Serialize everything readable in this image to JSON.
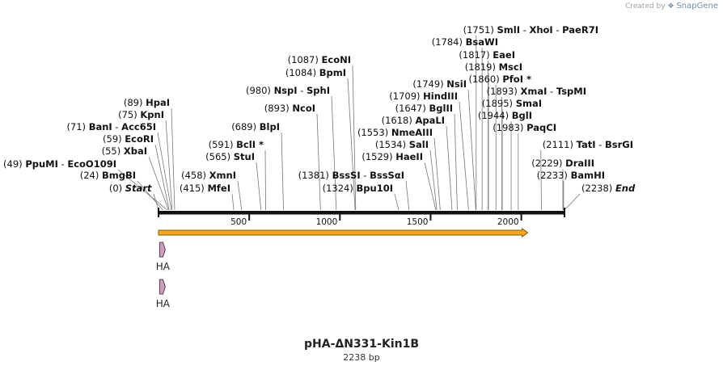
{
  "credit": {
    "prefix": "Created by",
    "brand": "SnapGene"
  },
  "plasmid": {
    "name": "pHA-ΔN331-Kin1B",
    "length_label": "2238 bp",
    "length": 2238
  },
  "ruler": {
    "ticks": [
      500,
      1000,
      1500,
      2000
    ]
  },
  "feature_arrow": {
    "start": 0,
    "end": 2000,
    "fill": "#f5a623",
    "stroke": "#8a5a00"
  },
  "tags": [
    {
      "label": "HA",
      "position": 24
    },
    {
      "label": "HA",
      "position": 24
    }
  ],
  "sites": [
    {
      "names": [
        "Start"
      ],
      "pos_label": "(0)",
      "pos": 0,
      "special": true
    },
    {
      "names": [
        "BmgBI"
      ],
      "pos_label": "(24)",
      "pos": 24
    },
    {
      "names": [
        "PpuMI",
        "EcoO109I"
      ],
      "pos_label": "(49)",
      "pos": 49
    },
    {
      "names": [
        "XbaI"
      ],
      "pos_label": "(55)",
      "pos": 55
    },
    {
      "names": [
        "EcoRI"
      ],
      "pos_label": "(59)",
      "pos": 59
    },
    {
      "names": [
        "BanI",
        "Acc65I"
      ],
      "pos_label": "(71)",
      "pos": 71
    },
    {
      "names": [
        "KpnI"
      ],
      "pos_label": "(75)",
      "pos": 75
    },
    {
      "names": [
        "HpaI"
      ],
      "pos_label": "(89)",
      "pos": 89
    },
    {
      "names": [
        "MfeI"
      ],
      "pos_label": "(415)",
      "pos": 415
    },
    {
      "names": [
        "XmnI"
      ],
      "pos_label": "(458)",
      "pos": 458
    },
    {
      "names": [
        "StuI"
      ],
      "pos_label": "(565)",
      "pos": 565
    },
    {
      "names": [
        "BclI *"
      ],
      "pos_label": "(591)",
      "pos": 591
    },
    {
      "names": [
        "BlpI"
      ],
      "pos_label": "(689)",
      "pos": 689
    },
    {
      "names": [
        "NcoI"
      ],
      "pos_label": "(893)",
      "pos": 893
    },
    {
      "names": [
        "NspI",
        "SphI"
      ],
      "pos_label": "(980)",
      "pos": 980
    },
    {
      "names": [
        "BpmI"
      ],
      "pos_label": "(1084)",
      "pos": 1084
    },
    {
      "names": [
        "EcoNI"
      ],
      "pos_label": "(1087)",
      "pos": 1087
    },
    {
      "names": [
        "Bpu10I"
      ],
      "pos_label": "(1324)",
      "pos": 1324
    },
    {
      "names": [
        "BssSI",
        "BssSαI"
      ],
      "pos_label": "(1381)",
      "pos": 1381
    },
    {
      "names": [
        "HaeII"
      ],
      "pos_label": "(1529)",
      "pos": 1529
    },
    {
      "names": [
        "SalI"
      ],
      "pos_label": "(1534)",
      "pos": 1534
    },
    {
      "names": [
        "NmeAIII"
      ],
      "pos_label": "(1553)",
      "pos": 1553
    },
    {
      "names": [
        "ApaLI"
      ],
      "pos_label": "(1618)",
      "pos": 1618
    },
    {
      "names": [
        "BglII"
      ],
      "pos_label": "(1647)",
      "pos": 1647
    },
    {
      "names": [
        "HindIII"
      ],
      "pos_label": "(1709)",
      "pos": 1709
    },
    {
      "names": [
        "NsiI"
      ],
      "pos_label": "(1749)",
      "pos": 1749
    },
    {
      "names": [
        "SmlI",
        "XhoI",
        "PaeR7I"
      ],
      "pos_label": "(1751)",
      "pos": 1751
    },
    {
      "names": [
        "BsaWI"
      ],
      "pos_label": "(1784)",
      "pos": 1784
    },
    {
      "names": [
        "EaeI"
      ],
      "pos_label": "(1817)",
      "pos": 1817
    },
    {
      "names": [
        "MscI"
      ],
      "pos_label": "(1819)",
      "pos": 1819
    },
    {
      "names": [
        "PfoI *"
      ],
      "pos_label": "(1860)",
      "pos": 1860
    },
    {
      "names": [
        "XmaI",
        "TspMI"
      ],
      "pos_label": "(1893)",
      "pos": 1893
    },
    {
      "names": [
        "SmaI"
      ],
      "pos_label": "(1895)",
      "pos": 1895
    },
    {
      "names": [
        "BglI"
      ],
      "pos_label": "(1944)",
      "pos": 1944
    },
    {
      "names": [
        "PaqCI"
      ],
      "pos_label": "(1983)",
      "pos": 1983
    },
    {
      "names": [
        "TatI",
        "BsrGI"
      ],
      "pos_label": "(2111)",
      "pos": 2111
    },
    {
      "names": [
        "DraIII"
      ],
      "pos_label": "(2229)",
      "pos": 2229
    },
    {
      "names": [
        "BamHI"
      ],
      "pos_label": "(2233)",
      "pos": 2233
    },
    {
      "names": [
        "End"
      ],
      "pos_label": "(2238)",
      "pos": 2238,
      "special": true
    }
  ]
}
